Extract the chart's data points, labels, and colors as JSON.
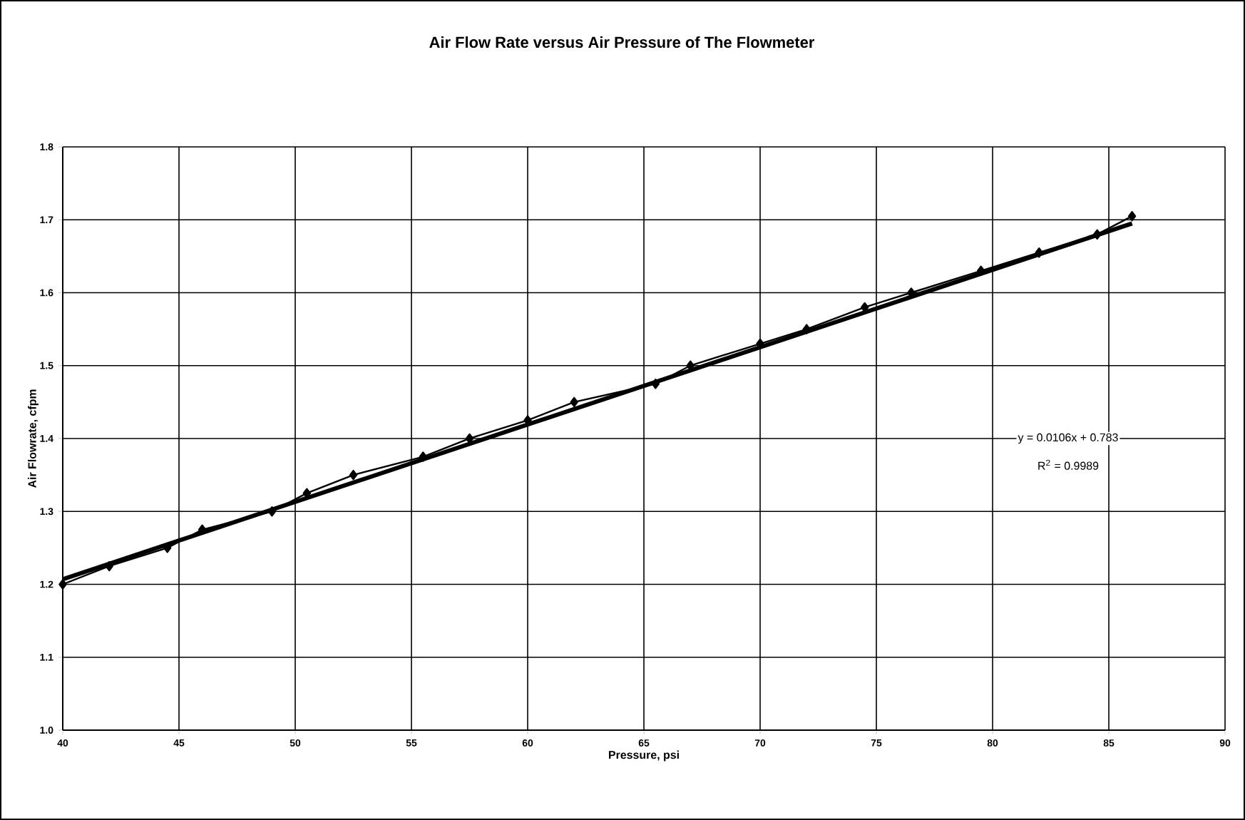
{
  "chart_data": {
    "type": "line",
    "title": "Air Flow Rate versus Air Pressure of The Flowmeter",
    "xlabel": "Pressure, psi",
    "ylabel": "Air Flowrate, cfpm",
    "xlim": [
      40,
      90
    ],
    "xticks": [
      40,
      45,
      50,
      55,
      60,
      65,
      70,
      75,
      80,
      85,
      90
    ],
    "ylim": [
      1.0,
      1.8
    ],
    "yticks": [
      {
        "value": 1.0,
        "label": "1.0"
      },
      1.1,
      1.2,
      1.3,
      1.4,
      1.5,
      1.6,
      1.7,
      1.8
    ],
    "grid": true,
    "series": [
      {
        "marker": "diamond",
        "color": "#000000",
        "x": [
          40,
          42,
          44.5,
          46,
          49,
          50.5,
          52.5,
          55.5,
          57.5,
          60,
          62,
          65.5,
          67,
          70,
          72,
          74.5,
          76.5,
          79.5,
          82,
          84.5,
          86
        ],
        "values": [
          1.2,
          1.225,
          1.25,
          1.275,
          1.3,
          1.325,
          1.35,
          1.375,
          1.4,
          1.425,
          1.45,
          1.475,
          1.5,
          1.53,
          1.55,
          1.58,
          1.6,
          1.63,
          1.655,
          1.68,
          1.705
        ]
      },
      {
        "type": "line",
        "marker": "none",
        "color": "#000000",
        "x": [
          40,
          86
        ],
        "values": [
          1.207,
          1.695
        ]
      }
    ],
    "annotations": [
      "y = 0.0106x + 0.783",
      "R$^{2}$ = 0.9989"
    ]
  }
}
